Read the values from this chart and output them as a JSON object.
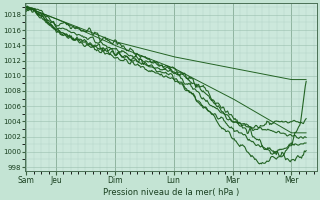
{
  "xlabel": "Pression niveau de la mer( hPa )",
  "bg_color": "#c4e4d4",
  "plot_bg_color": "#cce8dc",
  "grid_color_major": "#9abfaf",
  "grid_color_minor": "#b0d4c4",
  "line_color": "#1a5c1a",
  "ylim": [
    997.5,
    1019.5
  ],
  "yticks": [
    998,
    1000,
    1002,
    1004,
    1006,
    1008,
    1010,
    1012,
    1014,
    1016,
    1018
  ],
  "x_labels": [
    "Sam",
    "Jeu",
    "Dim",
    "Lun",
    "Mar",
    "Mer"
  ],
  "x_positions": [
    0.0,
    1.0,
    3.0,
    5.0,
    7.0,
    9.0
  ],
  "xlim": [
    -0.05,
    9.85
  ]
}
